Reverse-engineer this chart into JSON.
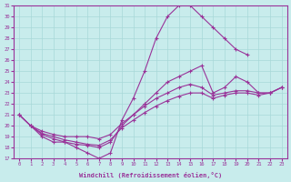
{
  "xlabel": "Windchill (Refroidissement éolien,°C)",
  "bg_color": "#c8ecec",
  "grid_color": "#a8d8d8",
  "line_color": "#993399",
  "xlim": [
    -0.5,
    23.5
  ],
  "ylim": [
    17,
    31
  ],
  "xticks": [
    0,
    1,
    2,
    3,
    4,
    5,
    6,
    7,
    8,
    9,
    10,
    11,
    12,
    13,
    14,
    15,
    16,
    17,
    18,
    19,
    20,
    21,
    22,
    23
  ],
  "yticks": [
    17,
    18,
    19,
    20,
    21,
    22,
    23,
    24,
    25,
    26,
    27,
    28,
    29,
    30,
    31
  ],
  "curve1": {
    "x": [
      0,
      1,
      2,
      3,
      4,
      5,
      6,
      7,
      8,
      9,
      10,
      11,
      12,
      13,
      14,
      15,
      16,
      17,
      18,
      19,
      20
    ],
    "y": [
      21,
      20,
      19,
      18.5,
      18.5,
      18,
      17.5,
      17,
      17.5,
      20.5,
      22.5,
      25,
      28,
      30,
      31,
      31,
      30,
      29,
      28,
      27,
      26.5
    ]
  },
  "curve2": {
    "x": [
      0,
      1,
      2,
      3,
      4,
      5,
      6,
      7,
      8,
      9,
      10,
      11,
      12,
      13,
      14,
      15,
      16,
      17,
      18,
      19,
      20,
      21,
      22,
      23
    ],
    "y": [
      21,
      20,
      19.2,
      18.8,
      18.5,
      18.3,
      18.2,
      18.0,
      18.5,
      20.0,
      21.0,
      22.0,
      23.0,
      24.0,
      24.5,
      25.0,
      25.5,
      23.0,
      23.5,
      24.5,
      24.0,
      23.0,
      23.0,
      23.5
    ]
  },
  "curve3": {
    "x": [
      0,
      1,
      2,
      3,
      4,
      5,
      6,
      7,
      8,
      9,
      10,
      11,
      12,
      13,
      14,
      15,
      16,
      17,
      18,
      19,
      20,
      21,
      22,
      23
    ],
    "y": [
      21,
      20.0,
      19.5,
      19.2,
      19.0,
      19.0,
      19.0,
      18.8,
      19.2,
      20.2,
      21.0,
      21.8,
      22.5,
      23.0,
      23.5,
      23.8,
      23.5,
      22.8,
      23.0,
      23.2,
      23.2,
      23.0,
      23.0,
      23.5
    ]
  },
  "curve4": {
    "x": [
      1,
      2,
      3,
      4,
      5,
      6,
      7,
      8,
      9,
      10,
      11,
      12,
      13,
      14,
      15,
      16,
      17,
      18,
      19,
      20,
      21,
      22,
      23
    ],
    "y": [
      20.0,
      19.3,
      19.0,
      18.7,
      18.5,
      18.3,
      18.2,
      18.7,
      19.8,
      20.5,
      21.2,
      21.8,
      22.3,
      22.7,
      23.0,
      23.0,
      22.5,
      22.8,
      23.0,
      23.0,
      22.8,
      23.0,
      23.5
    ]
  }
}
